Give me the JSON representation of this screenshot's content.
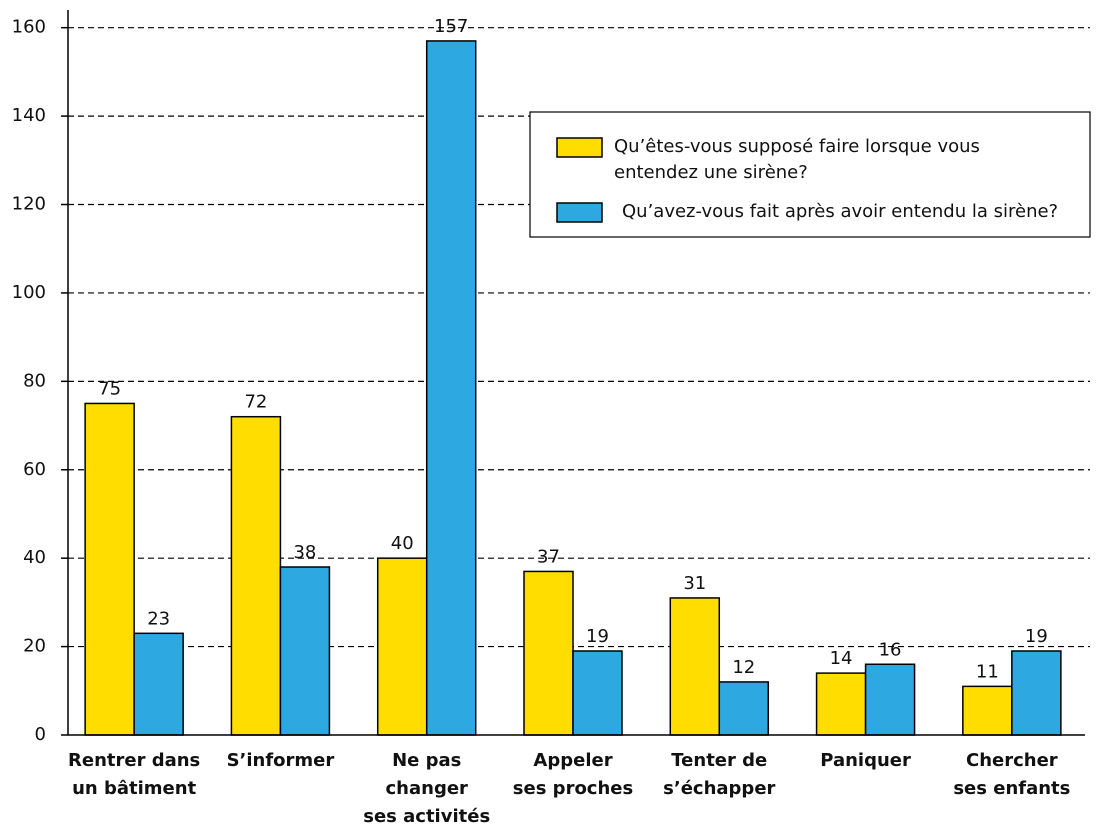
{
  "chart_data": {
    "type": "bar",
    "categories": [
      [
        "Rentrer dans",
        "un bâtiment"
      ],
      [
        "S’informer"
      ],
      [
        "Ne pas",
        "changer",
        "ses activités"
      ],
      [
        "Appeler",
        "ses proches"
      ],
      [
        "Tenter de",
        "s’échapper"
      ],
      [
        "Paniquer"
      ],
      [
        "Chercher",
        "ses enfants"
      ]
    ],
    "series": [
      {
        "name": "Qu’êtes-vous supposé faire lorsque vous entendez une sirène?",
        "color": "#ffdd00",
        "values": [
          75,
          72,
          40,
          37,
          31,
          14,
          11
        ]
      },
      {
        "name": "Qu’avez-vous fait après avoir entendu la sirène?",
        "color": "#2ea8e0",
        "values": [
          23,
          38,
          157,
          19,
          12,
          16,
          19
        ]
      }
    ],
    "ylim": [
      0,
      164
    ],
    "yticks": [
      0,
      20,
      40,
      60,
      80,
      100,
      120,
      140,
      160
    ],
    "grid": true,
    "legend": "upper right"
  }
}
